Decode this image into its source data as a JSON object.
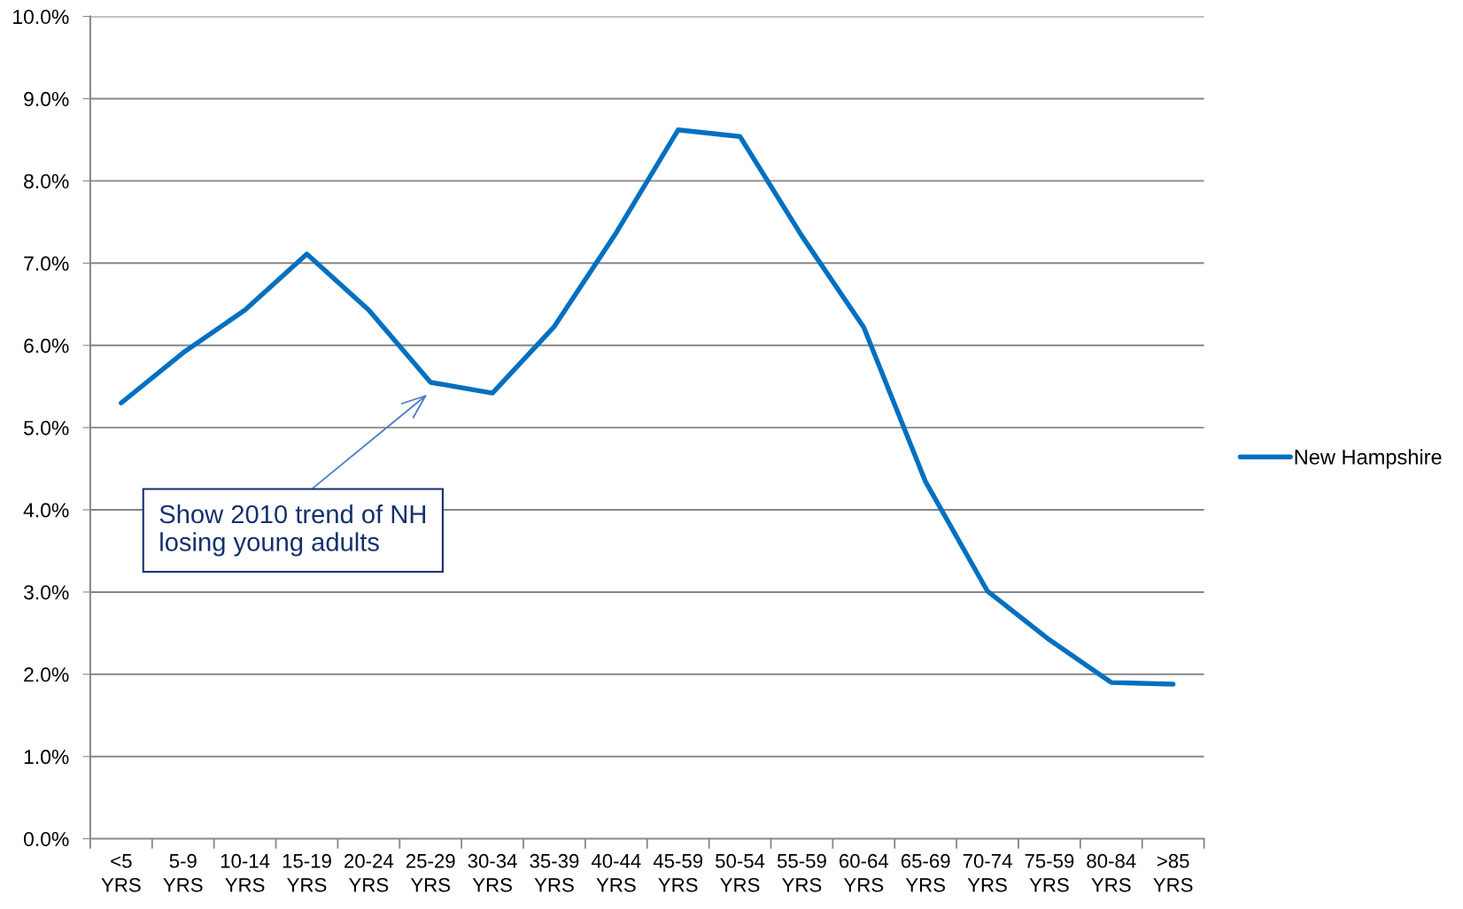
{
  "chart_data": {
    "type": "line",
    "categories": [
      "<5\nYRS",
      "5-9\nYRS",
      "10-14\nYRS",
      "15-19\nYRS",
      "20-24\nYRS",
      "25-29\nYRS",
      "30-34\nYRS",
      "35-39\nYRS",
      "40-44\nYRS",
      "45-59\nYRS",
      "50-54\nYRS",
      "55-59\nYRS",
      "60-64\nYRS",
      "65-69\nYRS",
      "70-74\nYRS",
      "75-59\nYRS",
      "80-84\nYRS",
      ">85\nYRS"
    ],
    "series": [
      {
        "name": "New Hampshire",
        "color": "#0070c0",
        "values": [
          5.3,
          5.91,
          6.43,
          7.11,
          6.43,
          5.55,
          5.42,
          6.23,
          7.37,
          8.62,
          8.54,
          7.33,
          6.22,
          4.34,
          3.01,
          2.42,
          1.9,
          1.88
        ]
      }
    ],
    "ylim": [
      0,
      10
    ],
    "yticks": [
      {
        "value": 0,
        "label": "0.0%"
      },
      {
        "value": 1,
        "label": "1.0%"
      },
      {
        "value": 2,
        "label": "2.0%"
      },
      {
        "value": 3,
        "label": "3.0%"
      },
      {
        "value": 4,
        "label": "4.0%"
      },
      {
        "value": 5,
        "label": "5.0%"
      },
      {
        "value": 6,
        "label": "6.0%"
      },
      {
        "value": 7,
        "label": "7.0%"
      },
      {
        "value": 8,
        "label": "8.0%"
      },
      {
        "value": 9,
        "label": "9.0%"
      },
      {
        "value": 10,
        "label": "10.0%"
      }
    ],
    "grid": "y",
    "legend": "right",
    "marker": "none",
    "line_style": "solid",
    "annotations": [
      "Show 2010 trend of NH\nlosing young adults"
    ]
  }
}
